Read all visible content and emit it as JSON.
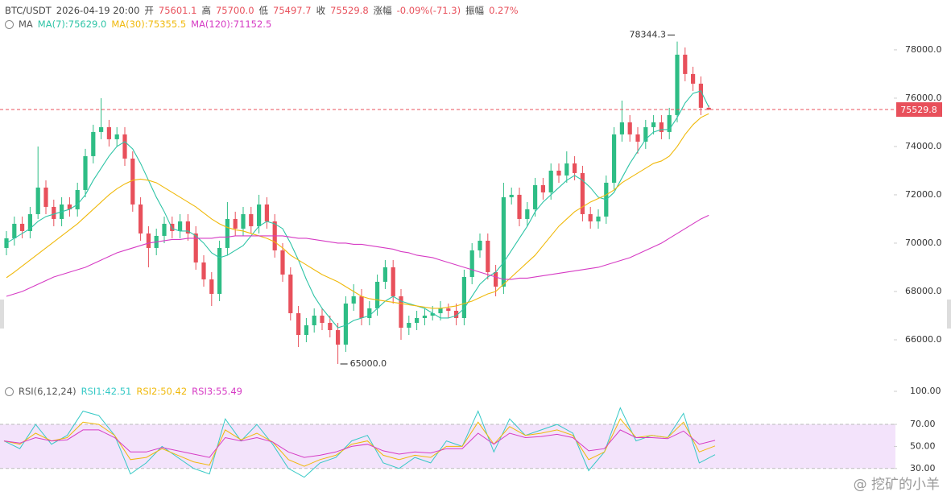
{
  "chart_data": [
    {
      "type": "candlestick",
      "header": [
        "BTC/USDT",
        "2026-04-19 20:00",
        "开",
        "75601.1",
        "高",
        "75700.0",
        "低",
        "75497.7",
        "收",
        "75529.8",
        "涨幅",
        "-0.09%(-71.3)",
        "振幅",
        "0.27%"
      ],
      "legend_title": "MA",
      "up_color": "#2ebd85",
      "down_color": "#e8505b",
      "high_label": "78344.3",
      "low_label": "65000.0",
      "ylim": [
        64400,
        78730
      ],
      "yticks": [
        {
          "value": 66000,
          "label": "66000.0"
        },
        {
          "value": 68000,
          "label": "68000.0"
        },
        {
          "value": 70000,
          "label": "70000.0"
        },
        {
          "value": 72000,
          "label": "72000.0"
        },
        {
          "value": 74000,
          "label": "74000.0"
        },
        {
          "value": 76000,
          "label": "76000.0"
        },
        {
          "value": 78000,
          "label": "78000.0"
        }
      ],
      "ohlc": [
        [
          69800,
          70500,
          69500,
          70200
        ],
        [
          70200,
          71100,
          69900,
          70800
        ],
        [
          70800,
          71100,
          70200,
          70500
        ],
        [
          70500,
          71500,
          70200,
          71200
        ],
        [
          71200,
          74000,
          71000,
          72300
        ],
        [
          72300,
          72600,
          71200,
          71500
        ],
        [
          71500,
          71800,
          70700,
          71000
        ],
        [
          71000,
          71900,
          70700,
          71600
        ],
        [
          71600,
          71900,
          71100,
          71400
        ],
        [
          71400,
          72500,
          71100,
          72200
        ],
        [
          72200,
          73900,
          71900,
          73600
        ],
        [
          73600,
          74900,
          73300,
          74600
        ],
        [
          74600,
          76000,
          74300,
          74800
        ],
        [
          74800,
          75100,
          74000,
          74300
        ],
        [
          74300,
          74800,
          74000,
          74500
        ],
        [
          74500,
          74800,
          73200,
          73500
        ],
        [
          73500,
          73800,
          71300,
          71600
        ],
        [
          71600,
          71900,
          70100,
          70400
        ],
        [
          70400,
          70700,
          69000,
          69800
        ],
        [
          69800,
          70600,
          69500,
          70300
        ],
        [
          70300,
          71100,
          70000,
          70800
        ],
        [
          70800,
          71100,
          70200,
          70500
        ],
        [
          70500,
          71200,
          70200,
          70900
        ],
        [
          70900,
          71200,
          70100,
          70400
        ],
        [
          70400,
          70700,
          68900,
          69200
        ],
        [
          69200,
          69500,
          68200,
          68500
        ],
        [
          68500,
          68800,
          67400,
          67900
        ],
        [
          67900,
          70100,
          67600,
          69800
        ],
        [
          69800,
          71700,
          69500,
          71000
        ],
        [
          71000,
          71300,
          70300,
          70600
        ],
        [
          70600,
          71500,
          70300,
          71200
        ],
        [
          71200,
          71500,
          70400,
          70700
        ],
        [
          70700,
          72000,
          70400,
          71600
        ],
        [
          71600,
          71900,
          70600,
          70900
        ],
        [
          70900,
          71200,
          69400,
          69700
        ],
        [
          69700,
          70000,
          68400,
          68700
        ],
        [
          68700,
          69000,
          66800,
          67100
        ],
        [
          67100,
          67400,
          65700,
          66200
        ],
        [
          66200,
          66900,
          65900,
          66600
        ],
        [
          66600,
          67300,
          66300,
          67000
        ],
        [
          67000,
          67300,
          66400,
          66700
        ],
        [
          66700,
          67000,
          66100,
          66400
        ],
        [
          66400,
          66700,
          65000,
          65800
        ],
        [
          65800,
          67800,
          65500,
          67500
        ],
        [
          67500,
          68300,
          67200,
          67800
        ],
        [
          67800,
          68100,
          66600,
          66900
        ],
        [
          66900,
          67600,
          66600,
          67300
        ],
        [
          67300,
          68700,
          67000,
          68400
        ],
        [
          68400,
          69300,
          68100,
          69000
        ],
        [
          69000,
          69300,
          67500,
          67800
        ],
        [
          67800,
          68100,
          66000,
          66500
        ],
        [
          66500,
          67000,
          66200,
          66700
        ],
        [
          66700,
          67200,
          66400,
          66900
        ],
        [
          66900,
          67300,
          66600,
          67000
        ],
        [
          67000,
          67400,
          66800,
          67100
        ],
        [
          67100,
          67600,
          66800,
          67300
        ],
        [
          67300,
          67500,
          66900,
          67200
        ],
        [
          67200,
          67500,
          66600,
          66900
        ],
        [
          66900,
          68900,
          66600,
          68600
        ],
        [
          68600,
          70000,
          68300,
          69700
        ],
        [
          69700,
          70400,
          69400,
          70100
        ],
        [
          70100,
          70400,
          68500,
          68800
        ],
        [
          68800,
          69100,
          67800,
          68200
        ],
        [
          68200,
          72500,
          67900,
          71900
        ],
        [
          71900,
          72300,
          71600,
          72000
        ],
        [
          72000,
          72300,
          70700,
          71000
        ],
        [
          71000,
          71700,
          70700,
          71400
        ],
        [
          71400,
          72700,
          71100,
          72400
        ],
        [
          72400,
          72700,
          71800,
          72100
        ],
        [
          72100,
          73300,
          71800,
          73000
        ],
        [
          73000,
          73300,
          72500,
          72800
        ],
        [
          72800,
          73800,
          72500,
          73300
        ],
        [
          73300,
          73600,
          72600,
          72900
        ],
        [
          72900,
          73200,
          70900,
          71200
        ],
        [
          71200,
          71500,
          70600,
          70900
        ],
        [
          70900,
          71400,
          70600,
          71100
        ],
        [
          71100,
          72800,
          70800,
          72500
        ],
        [
          72500,
          74800,
          72200,
          74500
        ],
        [
          74500,
          75900,
          74200,
          75000
        ],
        [
          75000,
          75300,
          74200,
          74500
        ],
        [
          74500,
          74800,
          73700,
          74200
        ],
        [
          74200,
          75100,
          73900,
          74800
        ],
        [
          74800,
          75300,
          74500,
          75000
        ],
        [
          75000,
          75300,
          74300,
          74600
        ],
        [
          74600,
          75600,
          74300,
          75300
        ],
        [
          75300,
          78344.3,
          75000,
          77800
        ],
        [
          77800,
          78100,
          76700,
          77000
        ],
        [
          77000,
          77300,
          76300,
          76600
        ],
        [
          76600,
          76900,
          75300,
          75601.1
        ],
        [
          75601.1,
          75700,
          75497.7,
          75529.8
        ]
      ],
      "series": [
        {
          "name": "MA(7):75629.0",
          "color": "#2ec4a6",
          "values": [
            70000,
            70200,
            70400,
            70600,
            70900,
            71100,
            71200,
            71300,
            71400,
            71600,
            72000,
            72600,
            73100,
            73600,
            74000,
            74200,
            73900,
            73300,
            72600,
            71900,
            71300,
            70600,
            70500,
            70500,
            70300,
            70000,
            69600,
            69400,
            69500,
            69700,
            69900,
            70300,
            70700,
            70900,
            70800,
            70600,
            70000,
            69300,
            68500,
            67800,
            67300,
            66900,
            66500,
            66600,
            66800,
            66900,
            67000,
            67300,
            67600,
            67800,
            67600,
            67500,
            67400,
            67300,
            67100,
            66900,
            66900,
            67000,
            67300,
            67800,
            68300,
            68600,
            68800,
            69200,
            69700,
            70200,
            70700,
            71300,
            71700,
            72000,
            72300,
            72600,
            72800,
            72600,
            72300,
            71900,
            71800,
            72100,
            72700,
            73300,
            73800,
            74300,
            74600,
            74700,
            74700,
            75200,
            75800,
            76200,
            76300,
            75629.0
          ]
        },
        {
          "name": "MA(30):75355.5",
          "color": "#f0b90b",
          "values": [
            68570,
            68800,
            69050,
            69300,
            69550,
            69800,
            70050,
            70300,
            70550,
            70800,
            71100,
            71400,
            71700,
            72000,
            72250,
            72450,
            72600,
            72650,
            72600,
            72500,
            72300,
            72100,
            71900,
            71700,
            71500,
            71250,
            71000,
            70800,
            70650,
            70550,
            70500,
            70400,
            70300,
            70200,
            70050,
            69800,
            69500,
            69300,
            69100,
            68900,
            68700,
            68550,
            68400,
            68200,
            68000,
            67800,
            67700,
            67650,
            67600,
            67550,
            67500,
            67450,
            67400,
            67350,
            67300,
            67300,
            67350,
            67400,
            67500,
            67600,
            67750,
            67900,
            68000,
            68300,
            68600,
            68900,
            69200,
            69500,
            69900,
            70300,
            70700,
            71000,
            71300,
            71500,
            71700,
            71850,
            72000,
            72200,
            72500,
            72700,
            72900,
            73100,
            73300,
            73400,
            73600,
            74000,
            74500,
            74900,
            75200,
            75355.5
          ]
        },
        {
          "name": "MA(120):71152.5",
          "color": "#d63bc4",
          "values": [
            67800,
            67900,
            68000,
            68150,
            68300,
            68450,
            68600,
            68700,
            68800,
            68900,
            69000,
            69150,
            69300,
            69450,
            69600,
            69700,
            69800,
            69900,
            70000,
            70050,
            70100,
            70150,
            70150,
            70200,
            70200,
            70200,
            70200,
            70250,
            70250,
            70300,
            70300,
            70300,
            70300,
            70300,
            70300,
            70300,
            70250,
            70200,
            70200,
            70150,
            70100,
            70050,
            70000,
            70000,
            69950,
            69950,
            69900,
            69850,
            69800,
            69750,
            69650,
            69600,
            69500,
            69450,
            69400,
            69300,
            69200,
            69100,
            69000,
            68900,
            68800,
            68700,
            68600,
            68500,
            68500,
            68550,
            68550,
            68600,
            68650,
            68700,
            68750,
            68800,
            68850,
            68900,
            68950,
            69000,
            69100,
            69200,
            69300,
            69400,
            69550,
            69700,
            69850,
            70000,
            70200,
            70400,
            70600,
            70800,
            71000,
            71152.5
          ]
        }
      ]
    },
    {
      "type": "line",
      "title": "RSI(6,12,24)",
      "ylim": [
        5,
        100
      ],
      "yticks": [
        {
          "value": 100,
          "label": "100.00"
        },
        {
          "value": 70,
          "label": "70.00"
        },
        {
          "value": 50,
          "label": "50.00"
        },
        {
          "value": 30,
          "label": "30.00"
        }
      ],
      "band": [
        30,
        70
      ],
      "band_color": "#f3e3fb",
      "series": [
        {
          "name": "RSI1:42.51",
          "color": "#36c9c6",
          "values": [
            55,
            48,
            70,
            52,
            60,
            82,
            78,
            60,
            25,
            35,
            50,
            40,
            30,
            25,
            75,
            55,
            70,
            52,
            30,
            22,
            35,
            40,
            55,
            60,
            35,
            30,
            40,
            35,
            55,
            50,
            82,
            45,
            75,
            60,
            65,
            70,
            62,
            28,
            45,
            85,
            55,
            60,
            58,
            80,
            35,
            42.51
          ]
        },
        {
          "name": "RSI2:50.42",
          "color": "#f0b90b",
          "values": [
            55,
            52,
            62,
            55,
            58,
            72,
            70,
            60,
            38,
            40,
            48,
            42,
            36,
            33,
            65,
            56,
            62,
            54,
            38,
            32,
            38,
            42,
            52,
            55,
            42,
            38,
            42,
            40,
            50,
            50,
            72,
            52,
            68,
            60,
            62,
            65,
            60,
            38,
            45,
            75,
            58,
            60,
            58,
            72,
            45,
            50.42
          ]
        },
        {
          "name": "RSI3:55.49",
          "color": "#d63bc4",
          "values": [
            55,
            53,
            58,
            55,
            56,
            65,
            65,
            58,
            45,
            45,
            49,
            46,
            43,
            40,
            58,
            55,
            58,
            54,
            45,
            40,
            42,
            45,
            50,
            52,
            46,
            43,
            45,
            44,
            48,
            48,
            62,
            52,
            62,
            58,
            59,
            61,
            58,
            46,
            48,
            65,
            58,
            58,
            57,
            64,
            52,
            55.49
          ]
        }
      ]
    }
  ],
  "watermark": "@ 挖矿的小羊"
}
